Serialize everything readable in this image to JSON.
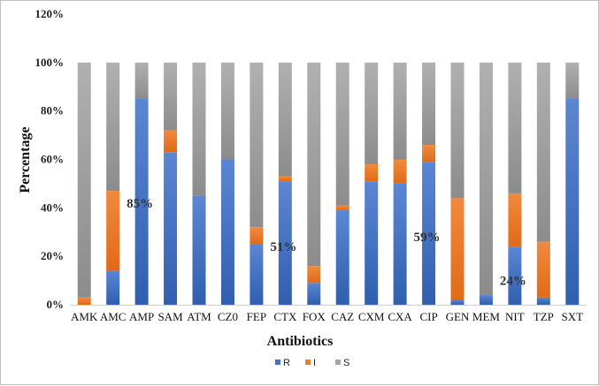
{
  "chart_data": {
    "type": "bar",
    "stacked": true,
    "xlabel": "Antibiotics",
    "ylabel": "Percentage",
    "ylim": [
      0,
      120
    ],
    "yticks": [
      0,
      20,
      40,
      60,
      80,
      100,
      120
    ],
    "ytick_suffix": "%",
    "grid": false,
    "legend_position": "bottom",
    "categories": [
      "AMK",
      "AMC",
      "AMP",
      "SAM",
      "ATM",
      "CZ0",
      "FEP",
      "CTX",
      "FOX",
      "CAZ",
      "CXM",
      "CXA",
      "CIP",
      "GEN",
      "MEM",
      "NIT",
      "TZP",
      "SXT"
    ],
    "series": [
      {
        "name": "R",
        "color": "#4472C4",
        "values": [
          0,
          14,
          85,
          63,
          45,
          60,
          25,
          51,
          9,
          39,
          51,
          50,
          59,
          2,
          4,
          24,
          3,
          85
        ]
      },
      {
        "name": "I",
        "color": "#ED7D31",
        "values": [
          3,
          33,
          0,
          9,
          0,
          0,
          7,
          2,
          7,
          2,
          7,
          10,
          7,
          42,
          0,
          22,
          23,
          0
        ]
      },
      {
        "name": "S",
        "color": "#A5A5A5",
        "values": [
          97,
          53,
          15,
          28,
          55,
          40,
          68,
          47,
          84,
          59,
          42,
          40,
          34,
          56,
          96,
          54,
          74,
          15
        ]
      }
    ],
    "annotations": [
      {
        "text": "85%",
        "category": "AMP",
        "y": 42
      },
      {
        "text": "51%",
        "category": "CTX",
        "y": 24
      },
      {
        "text": "59%",
        "category": "CIP",
        "y": 28
      },
      {
        "text": "24%",
        "category": "NIT",
        "y": 10
      }
    ]
  }
}
